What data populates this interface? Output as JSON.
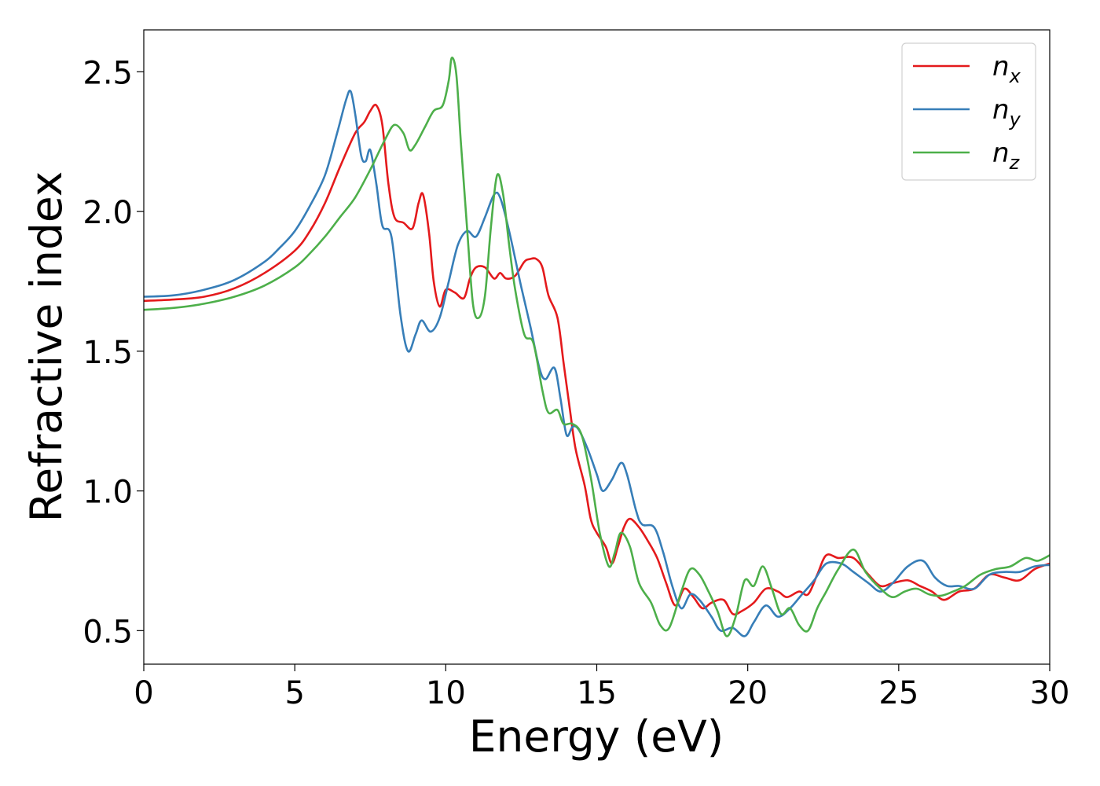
{
  "chart_data": {
    "type": "line",
    "xlabel": "Energy (eV)",
    "ylabel": "Refractive index",
    "xlim": [
      0,
      30
    ],
    "ylim": [
      0.38,
      2.65
    ],
    "xticks": [
      0,
      5,
      10,
      15,
      20,
      25,
      30
    ],
    "yticks": [
      0.5,
      1.0,
      1.5,
      2.0,
      2.5
    ],
    "xtick_labels": [
      "0",
      "5",
      "10",
      "15",
      "20",
      "25",
      "30"
    ],
    "ytick_labels": [
      "0.5",
      "1.0",
      "1.5",
      "2.0",
      "2.5"
    ],
    "grid": false,
    "legend_position": "top-right",
    "series": [
      {
        "name": "n",
        "subscript": "x",
        "color": "#e41a1c",
        "points": [
          [
            0,
            1.68
          ],
          [
            1,
            1.685
          ],
          [
            2,
            1.695
          ],
          [
            3,
            1.725
          ],
          [
            4,
            1.78
          ],
          [
            5,
            1.86
          ],
          [
            5.5,
            1.93
          ],
          [
            6,
            2.03
          ],
          [
            6.5,
            2.16
          ],
          [
            7,
            2.28
          ],
          [
            7.3,
            2.32
          ],
          [
            7.5,
            2.36
          ],
          [
            7.7,
            2.38
          ],
          [
            7.9,
            2.31
          ],
          [
            8.1,
            2.1
          ],
          [
            8.3,
            1.98
          ],
          [
            8.6,
            1.96
          ],
          [
            8.9,
            1.94
          ],
          [
            9.1,
            2.03
          ],
          [
            9.25,
            2.06
          ],
          [
            9.45,
            1.92
          ],
          [
            9.6,
            1.75
          ],
          [
            9.8,
            1.66
          ],
          [
            10,
            1.72
          ],
          [
            10.3,
            1.71
          ],
          [
            10.6,
            1.69
          ],
          [
            10.8,
            1.76
          ],
          [
            11,
            1.8
          ],
          [
            11.3,
            1.8
          ],
          [
            11.6,
            1.76
          ],
          [
            11.8,
            1.78
          ],
          [
            12,
            1.76
          ],
          [
            12.3,
            1.77
          ],
          [
            12.6,
            1.82
          ],
          [
            12.8,
            1.83
          ],
          [
            13,
            1.83
          ],
          [
            13.2,
            1.8
          ],
          [
            13.4,
            1.7
          ],
          [
            13.7,
            1.62
          ],
          [
            13.9,
            1.46
          ],
          [
            14.1,
            1.3
          ],
          [
            14.3,
            1.15
          ],
          [
            14.6,
            1.02
          ],
          [
            14.8,
            0.9
          ],
          [
            15,
            0.85
          ],
          [
            15.3,
            0.8
          ],
          [
            15.5,
            0.74
          ],
          [
            15.7,
            0.8
          ],
          [
            15.9,
            0.87
          ],
          [
            16.1,
            0.9
          ],
          [
            16.4,
            0.87
          ],
          [
            16.7,
            0.82
          ],
          [
            17,
            0.76
          ],
          [
            17.3,
            0.67
          ],
          [
            17.6,
            0.59
          ],
          [
            17.9,
            0.65
          ],
          [
            18.2,
            0.62
          ],
          [
            18.5,
            0.58
          ],
          [
            18.8,
            0.6
          ],
          [
            19.2,
            0.61
          ],
          [
            19.5,
            0.56
          ],
          [
            19.8,
            0.57
          ],
          [
            20.2,
            0.6
          ],
          [
            20.6,
            0.65
          ],
          [
            21,
            0.64
          ],
          [
            21.3,
            0.62
          ],
          [
            21.7,
            0.64
          ],
          [
            22,
            0.63
          ],
          [
            22.3,
            0.7
          ],
          [
            22.6,
            0.77
          ],
          [
            23,
            0.76
          ],
          [
            23.5,
            0.76
          ],
          [
            24,
            0.7
          ],
          [
            24.4,
            0.66
          ],
          [
            24.8,
            0.67
          ],
          [
            25.3,
            0.68
          ],
          [
            25.7,
            0.66
          ],
          [
            26.1,
            0.64
          ],
          [
            26.5,
            0.61
          ],
          [
            27,
            0.64
          ],
          [
            27.5,
            0.65
          ],
          [
            28,
            0.7
          ],
          [
            28.5,
            0.69
          ],
          [
            29,
            0.68
          ],
          [
            29.5,
            0.72
          ],
          [
            30,
            0.74
          ]
        ]
      },
      {
        "name": "n",
        "subscript": "y",
        "color": "#377eb8",
        "points": [
          [
            0,
            1.695
          ],
          [
            1,
            1.7
          ],
          [
            2,
            1.72
          ],
          [
            3,
            1.755
          ],
          [
            4,
            1.82
          ],
          [
            4.5,
            1.87
          ],
          [
            5,
            1.93
          ],
          [
            5.5,
            2.02
          ],
          [
            6,
            2.13
          ],
          [
            6.4,
            2.28
          ],
          [
            6.7,
            2.4
          ],
          [
            6.85,
            2.43
          ],
          [
            7,
            2.35
          ],
          [
            7.2,
            2.2
          ],
          [
            7.35,
            2.18
          ],
          [
            7.5,
            2.22
          ],
          [
            7.7,
            2.1
          ],
          [
            7.9,
            1.95
          ],
          [
            8.2,
            1.91
          ],
          [
            8.5,
            1.63
          ],
          [
            8.75,
            1.5
          ],
          [
            9,
            1.56
          ],
          [
            9.2,
            1.61
          ],
          [
            9.5,
            1.57
          ],
          [
            9.8,
            1.62
          ],
          [
            10.1,
            1.75
          ],
          [
            10.4,
            1.88
          ],
          [
            10.7,
            1.93
          ],
          [
            11,
            1.91
          ],
          [
            11.3,
            1.98
          ],
          [
            11.6,
            2.06
          ],
          [
            11.8,
            2.05
          ],
          [
            12.1,
            1.93
          ],
          [
            12.5,
            1.73
          ],
          [
            12.8,
            1.59
          ],
          [
            13.1,
            1.44
          ],
          [
            13.3,
            1.4
          ],
          [
            13.6,
            1.44
          ],
          [
            13.8,
            1.33
          ],
          [
            14,
            1.2
          ],
          [
            14.2,
            1.23
          ],
          [
            14.4,
            1.22
          ],
          [
            14.7,
            1.15
          ],
          [
            15,
            1.06
          ],
          [
            15.2,
            1.0
          ],
          [
            15.5,
            1.04
          ],
          [
            15.8,
            1.1
          ],
          [
            16,
            1.06
          ],
          [
            16.3,
            0.93
          ],
          [
            16.5,
            0.88
          ],
          [
            16.9,
            0.87
          ],
          [
            17.2,
            0.78
          ],
          [
            17.5,
            0.66
          ],
          [
            17.8,
            0.58
          ],
          [
            18.1,
            0.63
          ],
          [
            18.4,
            0.61
          ],
          [
            18.8,
            0.55
          ],
          [
            19.1,
            0.5
          ],
          [
            19.5,
            0.51
          ],
          [
            19.9,
            0.48
          ],
          [
            20.2,
            0.53
          ],
          [
            20.6,
            0.59
          ],
          [
            21,
            0.55
          ],
          [
            21.4,
            0.58
          ],
          [
            21.8,
            0.63
          ],
          [
            22.2,
            0.68
          ],
          [
            22.6,
            0.74
          ],
          [
            23.1,
            0.74
          ],
          [
            23.5,
            0.71
          ],
          [
            24,
            0.67
          ],
          [
            24.4,
            0.64
          ],
          [
            24.8,
            0.67
          ],
          [
            25.3,
            0.73
          ],
          [
            25.8,
            0.75
          ],
          [
            26.2,
            0.69
          ],
          [
            26.6,
            0.66
          ],
          [
            27,
            0.66
          ],
          [
            27.5,
            0.65
          ],
          [
            28,
            0.7
          ],
          [
            28.5,
            0.71
          ],
          [
            29,
            0.71
          ],
          [
            29.5,
            0.73
          ],
          [
            30,
            0.735
          ]
        ]
      },
      {
        "name": "n",
        "subscript": "z",
        "color": "#4daf4a",
        "points": [
          [
            0,
            1.648
          ],
          [
            1,
            1.655
          ],
          [
            2,
            1.67
          ],
          [
            3,
            1.695
          ],
          [
            4,
            1.735
          ],
          [
            5,
            1.8
          ],
          [
            5.5,
            1.85
          ],
          [
            6,
            1.91
          ],
          [
            6.5,
            1.98
          ],
          [
            7,
            2.05
          ],
          [
            7.5,
            2.15
          ],
          [
            8,
            2.26
          ],
          [
            8.3,
            2.31
          ],
          [
            8.6,
            2.28
          ],
          [
            8.8,
            2.22
          ],
          [
            9,
            2.24
          ],
          [
            9.3,
            2.3
          ],
          [
            9.6,
            2.36
          ],
          [
            9.9,
            2.38
          ],
          [
            10.1,
            2.47
          ],
          [
            10.2,
            2.55
          ],
          [
            10.35,
            2.49
          ],
          [
            10.5,
            2.25
          ],
          [
            10.7,
            1.95
          ],
          [
            10.9,
            1.67
          ],
          [
            11.1,
            1.62
          ],
          [
            11.3,
            1.7
          ],
          [
            11.5,
            1.95
          ],
          [
            11.7,
            2.13
          ],
          [
            11.9,
            2.06
          ],
          [
            12.1,
            1.88
          ],
          [
            12.3,
            1.72
          ],
          [
            12.6,
            1.56
          ],
          [
            12.9,
            1.53
          ],
          [
            13.2,
            1.36
          ],
          [
            13.4,
            1.28
          ],
          [
            13.7,
            1.29
          ],
          [
            13.9,
            1.24
          ],
          [
            14.2,
            1.24
          ],
          [
            14.5,
            1.2
          ],
          [
            14.8,
            1.05
          ],
          [
            15.1,
            0.85
          ],
          [
            15.4,
            0.73
          ],
          [
            15.6,
            0.78
          ],
          [
            15.8,
            0.85
          ],
          [
            16.1,
            0.8
          ],
          [
            16.4,
            0.67
          ],
          [
            16.8,
            0.6
          ],
          [
            17.1,
            0.52
          ],
          [
            17.4,
            0.51
          ],
          [
            17.8,
            0.64
          ],
          [
            18.1,
            0.72
          ],
          [
            18.4,
            0.7
          ],
          [
            18.7,
            0.64
          ],
          [
            19,
            0.57
          ],
          [
            19.3,
            0.48
          ],
          [
            19.6,
            0.55
          ],
          [
            19.9,
            0.68
          ],
          [
            20.2,
            0.66
          ],
          [
            20.5,
            0.73
          ],
          [
            20.8,
            0.65
          ],
          [
            21.1,
            0.56
          ],
          [
            21.4,
            0.58
          ],
          [
            21.7,
            0.52
          ],
          [
            22,
            0.5
          ],
          [
            22.3,
            0.58
          ],
          [
            22.6,
            0.64
          ],
          [
            23,
            0.72
          ],
          [
            23.5,
            0.79
          ],
          [
            23.9,
            0.71
          ],
          [
            24.4,
            0.65
          ],
          [
            24.8,
            0.62
          ],
          [
            25.2,
            0.64
          ],
          [
            25.6,
            0.65
          ],
          [
            26,
            0.63
          ],
          [
            26.4,
            0.625
          ],
          [
            26.8,
            0.64
          ],
          [
            27.2,
            0.66
          ],
          [
            27.7,
            0.7
          ],
          [
            28.2,
            0.72
          ],
          [
            28.7,
            0.73
          ],
          [
            29.2,
            0.76
          ],
          [
            29.6,
            0.75
          ],
          [
            30,
            0.77
          ]
        ]
      }
    ]
  }
}
